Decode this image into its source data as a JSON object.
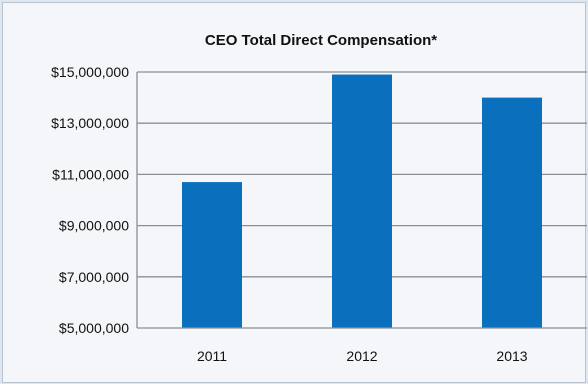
{
  "chart_data": {
    "type": "bar",
    "title": "CEO Total Direct Compensation*",
    "categories": [
      "2011",
      "2012",
      "2013"
    ],
    "values": [
      10700000,
      14900000,
      14000000
    ],
    "xlabel": "",
    "ylabel": "",
    "ylim": [
      5000000,
      15000000
    ],
    "yticks": [
      "$15,000,000",
      "$13,000,000",
      "$11,000,000",
      "$9,000,000",
      "$7,000,000",
      "$5,000,000"
    ],
    "ytick_values": [
      15000000,
      13000000,
      11000000,
      9000000,
      7000000,
      5000000
    ],
    "grid": true,
    "legend": "none",
    "bar_color": "#0a6fbd",
    "grid_color": "#8a8f96",
    "background_color": "#f4f6f9"
  }
}
